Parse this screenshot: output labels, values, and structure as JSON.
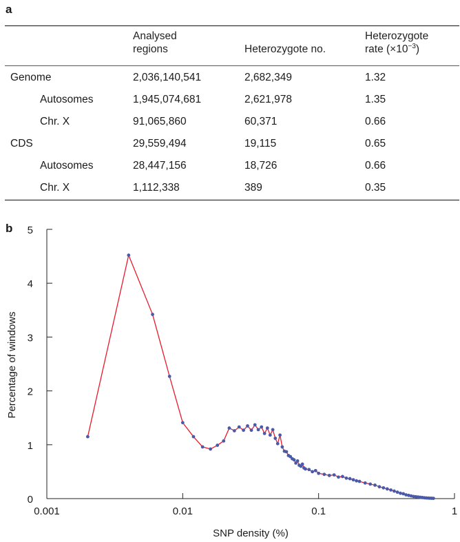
{
  "panel_a_label": "a",
  "panel_b_label": "b",
  "table": {
    "headers": {
      "col1_line1": "Analysed",
      "col1_line2": "regions",
      "col2": "Heterozygote no.",
      "col3_line1": "Heterozygote",
      "col3_line2_prefix": "rate (×10",
      "col3_line2_exp": "−3",
      "col3_line2_suffix": ")"
    },
    "rows": [
      {
        "label": "Genome",
        "indent": false,
        "regions": "2,036,140,541",
        "het_no": "2,682,349",
        "rate": "1.32"
      },
      {
        "label": "Autosomes",
        "indent": true,
        "regions": "1,945,074,681",
        "het_no": "2,621,978",
        "rate": "1.35"
      },
      {
        "label": "Chr. X",
        "indent": true,
        "regions": "91,065,860",
        "het_no": "60,371",
        "rate": "0.66"
      },
      {
        "label": "CDS",
        "indent": false,
        "regions": "29,559,494",
        "het_no": "19,115",
        "rate": "0.65"
      },
      {
        "label": "Autosomes",
        "indent": true,
        "regions": "28,447,156",
        "het_no": "18,726",
        "rate": "0.66"
      },
      {
        "label": "Chr. X",
        "indent": true,
        "regions": "1,112,338",
        "het_no": "389",
        "rate": "0.35"
      }
    ]
  },
  "chart_data": {
    "type": "line",
    "xlabel": "SNP density (%)",
    "ylabel": "Percentage of windows",
    "x_scale": "log",
    "xlim": [
      0.001,
      1
    ],
    "ylim": [
      0,
      5
    ],
    "xticks": [
      0.001,
      0.01,
      0.1,
      1
    ],
    "xtick_labels": [
      "0.001",
      "0.01",
      "0.1",
      "1"
    ],
    "yticks": [
      0,
      1,
      2,
      3,
      4,
      5
    ],
    "ytick_labels": [
      "0",
      "1",
      "2",
      "3",
      "4",
      "5"
    ],
    "grid": false,
    "line_color": "#e8192c",
    "marker_color": "#4a5aa8",
    "series": [
      {
        "x": [
          0.002,
          0.004,
          0.006,
          0.008,
          0.01,
          0.012,
          0.014,
          0.016,
          0.018,
          0.02,
          0.022,
          0.024,
          0.026,
          0.028,
          0.03,
          0.032,
          0.034,
          0.036,
          0.038,
          0.04,
          0.042,
          0.044,
          0.046,
          0.048,
          0.05,
          0.052,
          0.054,
          0.056,
          0.058,
          0.06,
          0.062,
          0.064,
          0.066,
          0.068,
          0.07,
          0.072,
          0.074,
          0.076,
          0.078,
          0.08,
          0.085,
          0.09,
          0.095,
          0.1,
          0.11,
          0.12,
          0.13,
          0.14,
          0.15,
          0.16,
          0.17,
          0.18,
          0.19,
          0.2,
          0.22,
          0.24,
          0.26,
          0.28,
          0.3,
          0.32,
          0.34,
          0.36,
          0.38,
          0.4,
          0.42,
          0.44,
          0.46,
          0.48,
          0.5,
          0.52,
          0.54,
          0.56,
          0.58,
          0.6,
          0.62,
          0.64,
          0.66,
          0.68,
          0.7
        ],
        "y": [
          1.15,
          4.52,
          3.42,
          2.27,
          1.41,
          1.15,
          0.96,
          0.92,
          0.99,
          1.07,
          1.31,
          1.26,
          1.33,
          1.27,
          1.35,
          1.27,
          1.37,
          1.28,
          1.33,
          1.21,
          1.31,
          1.18,
          1.28,
          1.12,
          1.02,
          1.18,
          0.96,
          0.88,
          0.87,
          0.8,
          0.78,
          0.74,
          0.72,
          0.66,
          0.7,
          0.62,
          0.6,
          0.64,
          0.57,
          0.55,
          0.54,
          0.5,
          0.52,
          0.47,
          0.45,
          0.43,
          0.44,
          0.4,
          0.41,
          0.38,
          0.37,
          0.35,
          0.33,
          0.32,
          0.29,
          0.27,
          0.25,
          0.22,
          0.2,
          0.18,
          0.16,
          0.14,
          0.12,
          0.1,
          0.09,
          0.07,
          0.06,
          0.05,
          0.04,
          0.035,
          0.03,
          0.025,
          0.02,
          0.015,
          0.012,
          0.01,
          0.008,
          0.006,
          0.005
        ]
      }
    ]
  }
}
